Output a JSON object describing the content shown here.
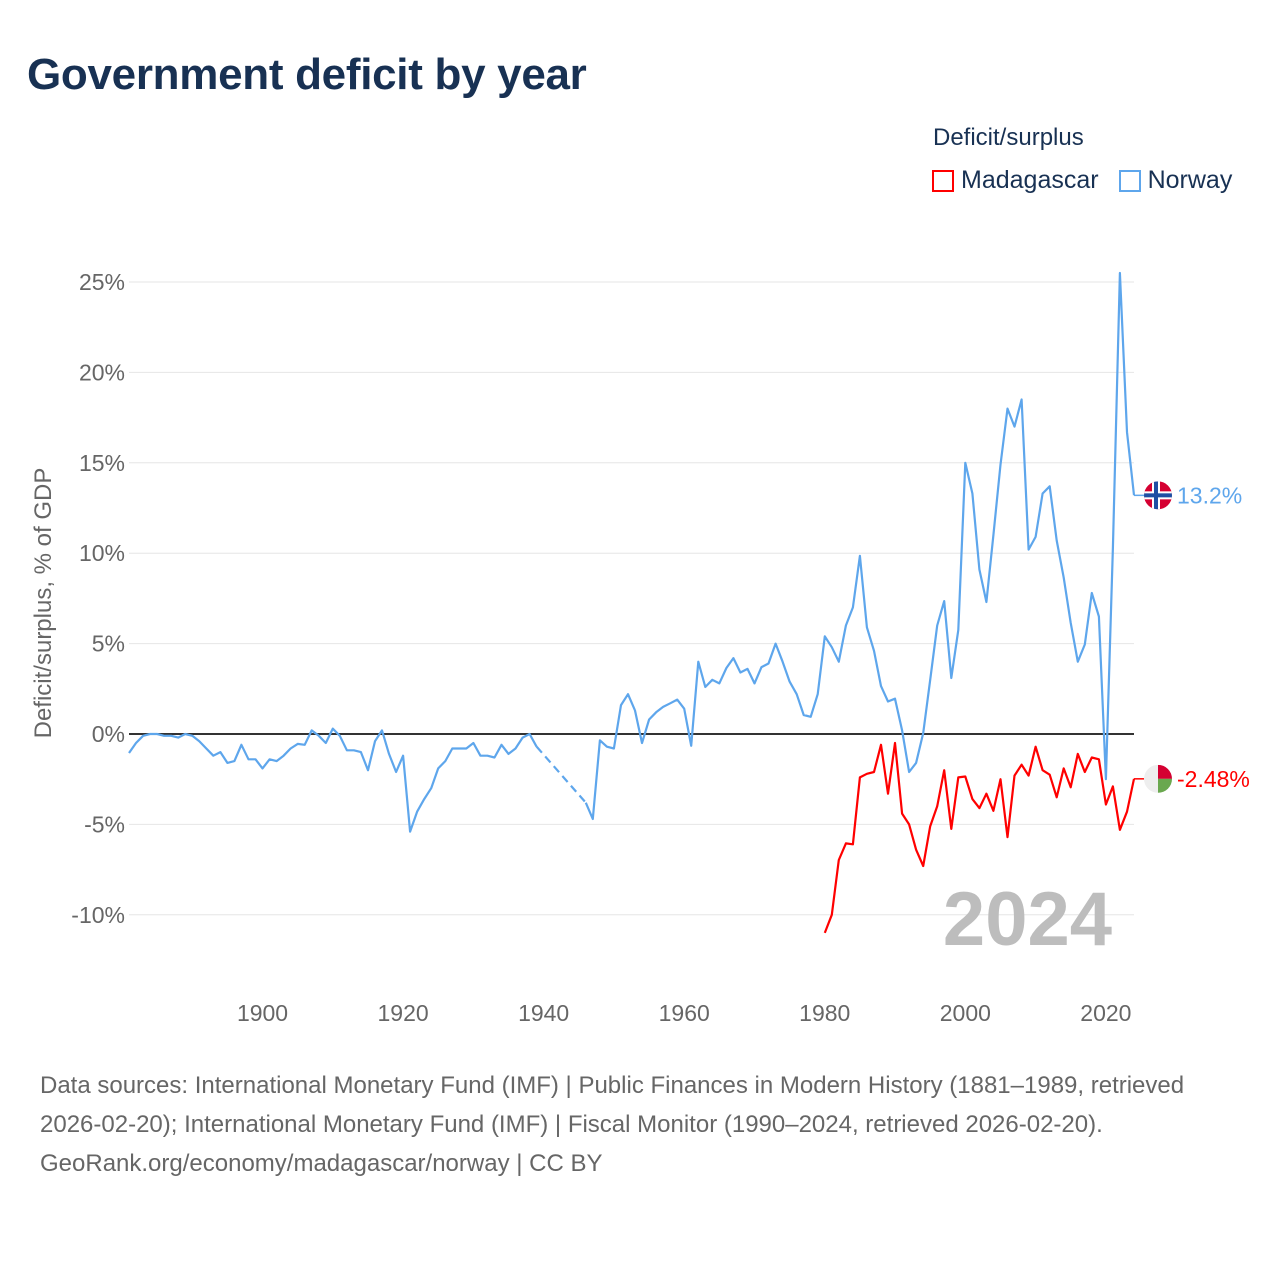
{
  "title": "Government deficit by year",
  "legend": {
    "title": "Deficit/surplus",
    "items": [
      {
        "name": "Madagascar",
        "color": "#ff0000"
      },
      {
        "name": "Norway",
        "color": "#5ea6ec"
      }
    ]
  },
  "footer": {
    "sources": "Data sources: International Monetary Fund (IMF) | Public Finances in Modern History (1881–1989, retrieved 2026-02-20); International Monetary Fund (IMF) | Fiscal Monitor (1990–2024, retrieved 2026-02-20).",
    "credit": "GeoRank.org/economy/madagascar/norway | CC BY"
  },
  "chart_data": {
    "type": "line",
    "title": "Government deficit by year",
    "ylabel": "Deficit/surplus, % of GDP",
    "xlabel": "",
    "year_label": "2024",
    "xlim": [
      1881,
      2024
    ],
    "ylim": [
      -12,
      25.5
    ],
    "x_ticks": [
      1900,
      1920,
      1940,
      1960,
      1980,
      2000,
      2020
    ],
    "x_tick_labels": [
      "1900",
      "1920",
      "1940",
      "1960",
      "1980",
      "2000",
      "2020"
    ],
    "y_ticks": [
      -10,
      -5,
      0,
      5,
      10,
      15,
      20,
      25
    ],
    "y_tick_labels": [
      "-10%",
      "-5%",
      "0%",
      "5%",
      "10%",
      "15%",
      "20%",
      "25%"
    ],
    "grid": true,
    "legend_position": "top-right",
    "series": [
      {
        "name": "Norway",
        "color": "#5ea6ec",
        "start_year": 1881,
        "end_label": "13.2%",
        "values": [
          -1.05,
          -0.5,
          -0.1,
          0,
          0,
          -0.1,
          -0.1,
          -0.2,
          0,
          -0.1,
          -0.4,
          -0.8,
          -1.2,
          -1.0,
          -1.6,
          -1.5,
          -0.6,
          -1.4,
          -1.4,
          -1.9,
          -1.4,
          -1.5,
          -1.2,
          -0.8,
          -0.55,
          -0.6,
          0.2,
          -0.1,
          -0.5,
          0.3,
          -0.1,
          -0.9,
          -0.9,
          -1.0,
          -2.0,
          -0.4,
          0.2,
          -1.1,
          -2.1,
          -1.2,
          -5.4,
          -4.3,
          -3.6,
          -3.0,
          -1.9,
          -1.5,
          -0.8,
          -0.8,
          -0.8,
          -0.5,
          -1.2,
          -1.2,
          -1.3,
          -0.6,
          -1.1,
          -0.8,
          -0.2,
          0.0,
          -0.7,
          null,
          null,
          null,
          null,
          null,
          null,
          -3.8,
          -4.7,
          -0.35,
          -0.7,
          -0.8,
          1.6,
          2.2,
          1.3,
          -0.5,
          0.8,
          1.2,
          1.5,
          1.7,
          1.9,
          1.4,
          -0.65,
          4.0,
          2.6,
          3.0,
          2.8,
          3.65,
          4.2,
          3.4,
          3.6,
          2.8,
          3.7,
          3.9,
          5.0,
          4.0,
          2.9,
          2.2,
          1.05,
          0.95,
          2.2,
          5.4,
          4.8,
          4.0,
          6.0,
          7.0,
          9.85,
          5.9,
          4.6,
          2.65,
          1.8,
          1.95,
          0.2,
          -2.1,
          -1.6,
          0.05,
          3.0,
          6.0,
          7.35,
          3.1,
          5.75,
          15.0,
          13.3,
          9.1,
          7.3,
          11.0,
          14.9,
          18.0,
          17.0,
          18.5,
          10.2,
          10.9,
          13.3,
          13.7,
          10.7,
          8.65,
          6.15,
          4.0,
          4.95,
          7.8,
          6.5,
          -2.5,
          10.3,
          25.5,
          16.7,
          13.2
        ]
      },
      {
        "name": "Madagascar",
        "color": "#ff0000",
        "start_year": 1980,
        "end_label": "-2.48%",
        "values": [
          -11.0,
          -10.0,
          -6.97,
          -6.05,
          -6.1,
          -2.4,
          -2.2,
          -2.1,
          -0.6,
          -3.3,
          -0.5,
          -4.4,
          -5.0,
          -6.4,
          -7.3,
          -5.1,
          -4.0,
          -2.0,
          -5.25,
          -2.4,
          -2.35,
          -3.6,
          -4.1,
          -3.3,
          -4.25,
          -2.5,
          -5.7,
          -2.3,
          -1.7,
          -2.3,
          -0.7,
          -2.0,
          -2.25,
          -3.5,
          -1.9,
          -2.95,
          -1.1,
          -2.1,
          -1.3,
          -1.4,
          -3.9,
          -2.9,
          -5.3,
          -4.3,
          -2.48
        ]
      }
    ]
  }
}
